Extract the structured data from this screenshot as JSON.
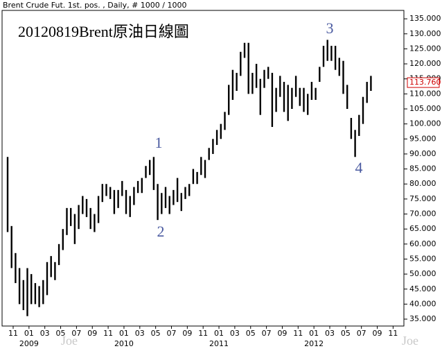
{
  "chart_data": {
    "type": "ohlc",
    "header": "Brent Crude Fut. 1st. pos. , Daily, # 1000 / 1000",
    "title": "20120819Brent原油日線圖",
    "watermark": "Joe",
    "color": "#000000",
    "ylim": [
      32.7,
      137.8
    ],
    "yticks": [
      {
        "value": 35,
        "label": "35.000"
      },
      {
        "value": 40,
        "label": "40.000"
      },
      {
        "value": 45,
        "label": "45.000"
      },
      {
        "value": 50,
        "label": "50.000"
      },
      {
        "value": 55,
        "label": "55.000"
      },
      {
        "value": 60,
        "label": "60.000"
      },
      {
        "value": 65,
        "label": "65.000"
      },
      {
        "value": 70,
        "label": "70.000"
      },
      {
        "value": 75,
        "label": "75.000"
      },
      {
        "value": 80,
        "label": "80.000"
      },
      {
        "value": 85,
        "label": "85.000"
      },
      {
        "value": 90,
        "label": "90.000"
      },
      {
        "value": 95,
        "label": "95.000"
      },
      {
        "value": 100,
        "label": "100.000"
      },
      {
        "value": 105,
        "label": "105.000"
      },
      {
        "value": 110,
        "label": "110.000"
      },
      {
        "value": 115,
        "label": "115.000"
      },
      {
        "value": 120,
        "label": "120.000"
      },
      {
        "value": 125,
        "label": "125.000"
      },
      {
        "value": 130,
        "label": "130.000"
      },
      {
        "value": 135,
        "label": "135.000"
      }
    ],
    "last_price": {
      "value": 113.76,
      "label": "113.760"
    },
    "month_labels": [
      "11",
      "01",
      "03",
      "05",
      "07",
      "09",
      "11",
      "01",
      "03",
      "05",
      "07",
      "09",
      "11",
      "01",
      "03",
      "05",
      "07",
      "09",
      "11",
      "01",
      "03",
      "05",
      "07",
      "09",
      "11"
    ],
    "year_labels": [
      "2009",
      "2010",
      "2011",
      "2012"
    ],
    "annotations": [
      "1",
      "2",
      "3",
      "4"
    ],
    "high": [
      89,
      66,
      57,
      52,
      48,
      52,
      50,
      47,
      46,
      48,
      54,
      56,
      54,
      60,
      65,
      72,
      72,
      70,
      73,
      76,
      75,
      72,
      70,
      76,
      80,
      80,
      79,
      78,
      78,
      81,
      78,
      76,
      79,
      81,
      82,
      86,
      88,
      89,
      80,
      77,
      79,
      76,
      78,
      82,
      77,
      79,
      80,
      85,
      84,
      89,
      88,
      92,
      95,
      98,
      100,
      104,
      113,
      118,
      117,
      124,
      127,
      127,
      117,
      120,
      115,
      118,
      119,
      117,
      112,
      116,
      114,
      113,
      112,
      116,
      112,
      112,
      110,
      114,
      112,
      119,
      126,
      128,
      126,
      126,
      122,
      121,
      113,
      102,
      98,
      103,
      109,
      114,
      116
    ],
    "low": [
      64,
      52,
      47,
      40,
      38,
      36,
      40,
      40,
      39,
      40,
      43,
      49,
      48,
      53,
      58,
      63,
      66,
      60,
      65,
      70,
      69,
      65,
      64,
      67,
      74,
      76,
      75,
      70,
      72,
      76,
      70,
      69,
      73,
      77,
      77,
      82,
      83,
      78,
      68,
      70,
      72,
      70,
      73,
      74,
      71,
      75,
      76,
      80,
      80,
      83,
      82,
      88,
      90,
      93,
      95,
      98,
      103,
      108,
      111,
      116,
      122,
      110,
      110,
      112,
      103,
      112,
      115,
      99,
      104,
      109,
      104,
      101,
      105,
      109,
      106,
      104,
      103,
      108,
      108,
      114,
      119,
      121,
      121,
      118,
      116,
      110,
      105,
      95,
      89,
      96,
      100,
      107,
      111
    ]
  }
}
